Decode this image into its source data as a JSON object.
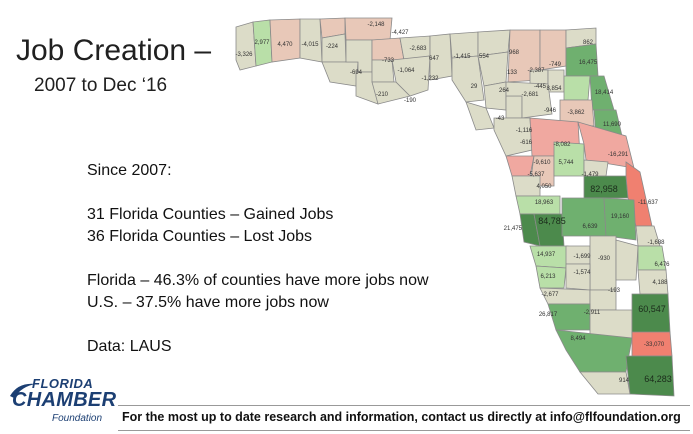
{
  "title": {
    "line1": "Job Creation –",
    "line2": "2007 to Dec ‘16"
  },
  "stats": {
    "since": "Since 2007:",
    "gained": "31 Florida Counties – Gained Jobs",
    "lost": "36 Florida Counties – Lost Jobs",
    "florida": "Florida – 46.3% of counties have more jobs now",
    "us": "U.S. – 37.5% have more jobs now",
    "source": "Data:  LAUS"
  },
  "footer": {
    "text": "For the most up to date research and information, contact us directly at info@flfoundation.org"
  },
  "logo": {
    "florida": "FLORIDA",
    "chamber": "CHAMBER",
    "foundation": "Foundation"
  },
  "colors": {
    "gain_strong": "#4c8a4c",
    "gain_medium": "#6fb06f",
    "gain_light": "#b9dfa8",
    "neutral": "#dcdcc8",
    "loss_light": "#e8c8b8",
    "loss_medium": "#f0a8a0",
    "loss_strong": "#f08070"
  },
  "map": {
    "county_labels": [
      "-3,326",
      "2,977",
      "4,470",
      "-4,015",
      "-2,148",
      "-4,427",
      "-224",
      "-694",
      "-733",
      "-2,683",
      "647",
      "-1,064",
      "-1,232",
      "-210",
      "-190",
      "-1,415",
      "554",
      "968",
      "29",
      "133",
      "-2,387",
      "264",
      "-749",
      "862",
      "16,475",
      "-445",
      "-2,681",
      "8,854",
      "-946",
      "-43",
      "-1,116",
      "-616",
      "-3,862",
      "18,414",
      "11,690",
      "-8,082",
      "-16,291",
      "5,744",
      "-1,479",
      "-9,610",
      "-5,637",
      "4,050",
      "82,958",
      "-11,637",
      "18,963",
      "84,785",
      "21,475",
      "19,160",
      "6,639",
      "-1,688",
      "14,937",
      "-1,699",
      "-1,574",
      "-930",
      "6,476",
      "6,213",
      "-193",
      "4,188",
      "-2,677",
      "-2,911",
      "26,817",
      "60,547",
      "8,494",
      "-33,070",
      "914",
      "64,283"
    ]
  }
}
